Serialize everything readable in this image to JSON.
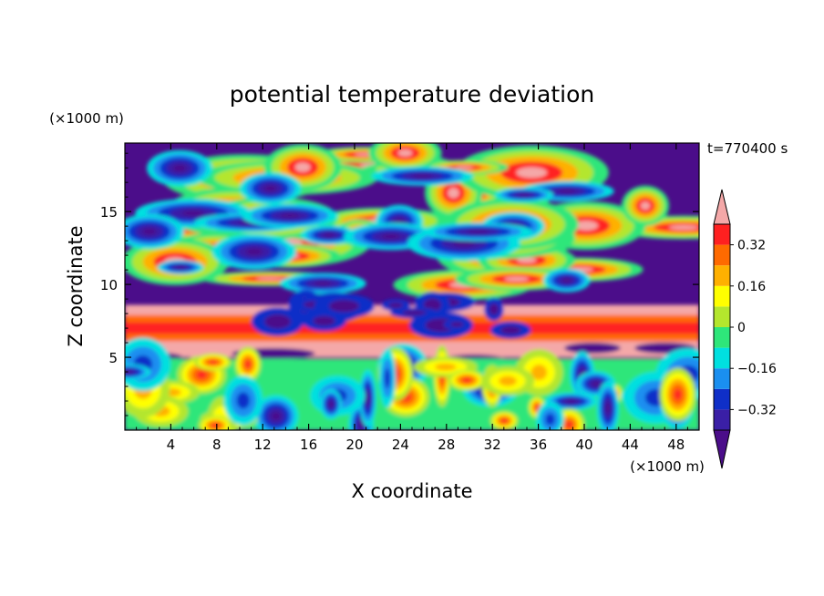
{
  "chart_data": {
    "type": "heatmap",
    "title": "potential temperature deviation",
    "xlabel": "X coordinate",
    "ylabel": "Z coordinate",
    "x_unit": "(×1000 m)",
    "y_unit": "(×1000 m)",
    "time_label": "t=770400 s",
    "xlim": [
      0,
      50
    ],
    "ylim": [
      0,
      19.7
    ],
    "x_ticks": [
      4,
      8,
      12,
      16,
      20,
      24,
      28,
      32,
      36,
      40,
      44,
      48
    ],
    "y_ticks": [
      5,
      10,
      15
    ],
    "colorbar": {
      "levels": [
        -0.4,
        -0.32,
        -0.24,
        -0.16,
        -0.08,
        0,
        0.08,
        0.16,
        0.24,
        0.32,
        0.4
      ],
      "tick_values": [
        0.32,
        0.16,
        0,
        -0.16,
        -0.32
      ],
      "tick_labels": [
        "0.32",
        "0.16",
        "0",
        "−0.16",
        "−0.32"
      ],
      "colors": [
        "#4b0d8a",
        "#3a1fa6",
        "#0f2fc8",
        "#1a8ff0",
        "#00e0e0",
        "#2ee67a",
        "#b4e62d",
        "#ffff00",
        "#ffb000",
        "#ff6a00",
        "#ff2020",
        "#f4a8a8"
      ],
      "extend": "both"
    },
    "layers": [
      {
        "z_range": [
          0,
          5
        ],
        "description": "mixed convective boundary layer, values roughly -0.4 to 0.4"
      },
      {
        "z_range": [
          5,
          6.3
        ],
        "value": 0.42
      },
      {
        "z_range": [
          6.3,
          8
        ],
        "value": 0.3
      },
      {
        "z_range": [
          8,
          19.7
        ],
        "description": "alternating high positive (>0.4) and strong negative (<-0.4) patches"
      }
    ]
  }
}
